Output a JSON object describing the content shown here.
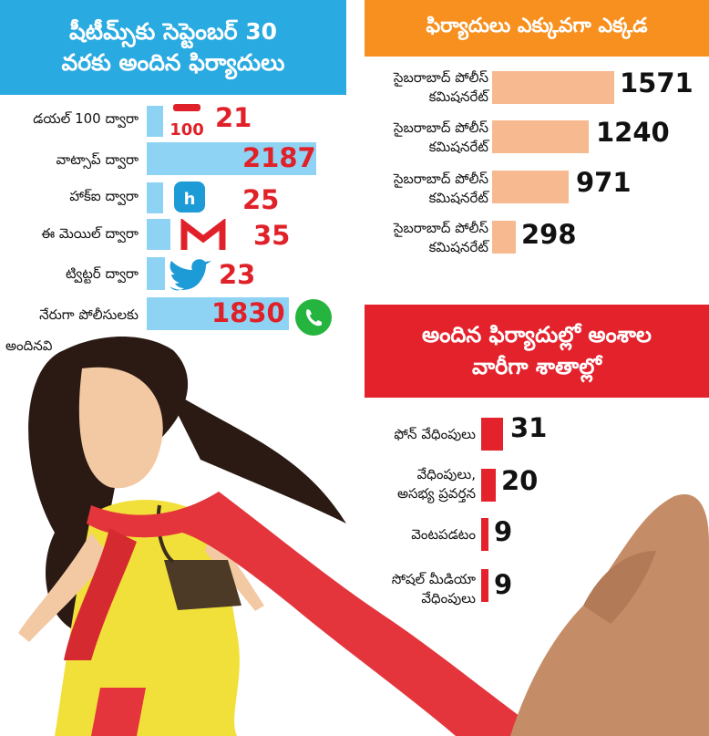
{
  "colors": {
    "blue_header": "#29aae1",
    "orange_header": "#f7901e",
    "red_header": "#e4222c",
    "blue_bar": "#8fd3f4",
    "peach_bar": "#f7b98f",
    "red_bar": "#e4222c",
    "value_red": "#e02129"
  },
  "icons": [
    "phone-100-icon",
    "hawkeye-icon",
    "gmail-icon",
    "twitter-icon",
    "whatsapp-icon"
  ],
  "chart_data": [
    {
      "type": "bar",
      "orientation": "horizontal",
      "title_lines": [
        "షీటీమ్స్‌కు సెప్టెంబర్ 30",
        "వరకు అందిన ఫిర్యాదులు"
      ],
      "categories": [
        "డయల్ 100 ద్వారా",
        "వాట్సాప్ ద్వారా",
        "హాక్ఐ ద్వారా",
        "ఈ మెయిల్ ద్వారా",
        "ట్విట్టర్ ద్వారా",
        "నేరుగా పోలీసులకు"
      ],
      "category_note": "అందినవి",
      "values": [
        21,
        2187,
        25,
        35,
        23,
        1830
      ],
      "value_labels": [
        "21",
        "2187",
        "25",
        "35",
        "23",
        "1830"
      ]
    },
    {
      "type": "bar",
      "orientation": "horizontal",
      "title": "ఫిర్యాదులు ఎక్కువగా ఎక్కడ",
      "categories": [
        [
          "సైబరాబాద్ పోలీస్",
          "కమిషనరేట్"
        ],
        [
          "సైబరాబాద్ పోలీస్",
          "కమిషనరేట్"
        ],
        [
          "సైబరాబాద్ పోలీస్",
          "కమిషనరేట్"
        ],
        [
          "సైబరాబాద్ పోలీస్",
          "కమిషనరేట్"
        ]
      ],
      "values": [
        1571,
        1240,
        971,
        298
      ],
      "value_labels": [
        "1571",
        "1240",
        "971",
        "298"
      ]
    },
    {
      "type": "bar",
      "orientation": "horizontal",
      "title_lines": [
        "అందిన ఫిర్యాదుల్లో అంశాల",
        "వారీగా శాతాల్లో"
      ],
      "categories": [
        [
          "ఫోన్ వేధింపులు"
        ],
        [
          "వేధింపులు,",
          "అసభ్య ప్రవర్తన"
        ],
        [
          "వెంటపడటం"
        ],
        [
          "సోషల్ మీడియా",
          "వేధింపులు"
        ]
      ],
      "values": [
        31,
        20,
        9,
        9
      ],
      "value_labels": [
        "31",
        "20",
        "9",
        "9"
      ]
    }
  ]
}
